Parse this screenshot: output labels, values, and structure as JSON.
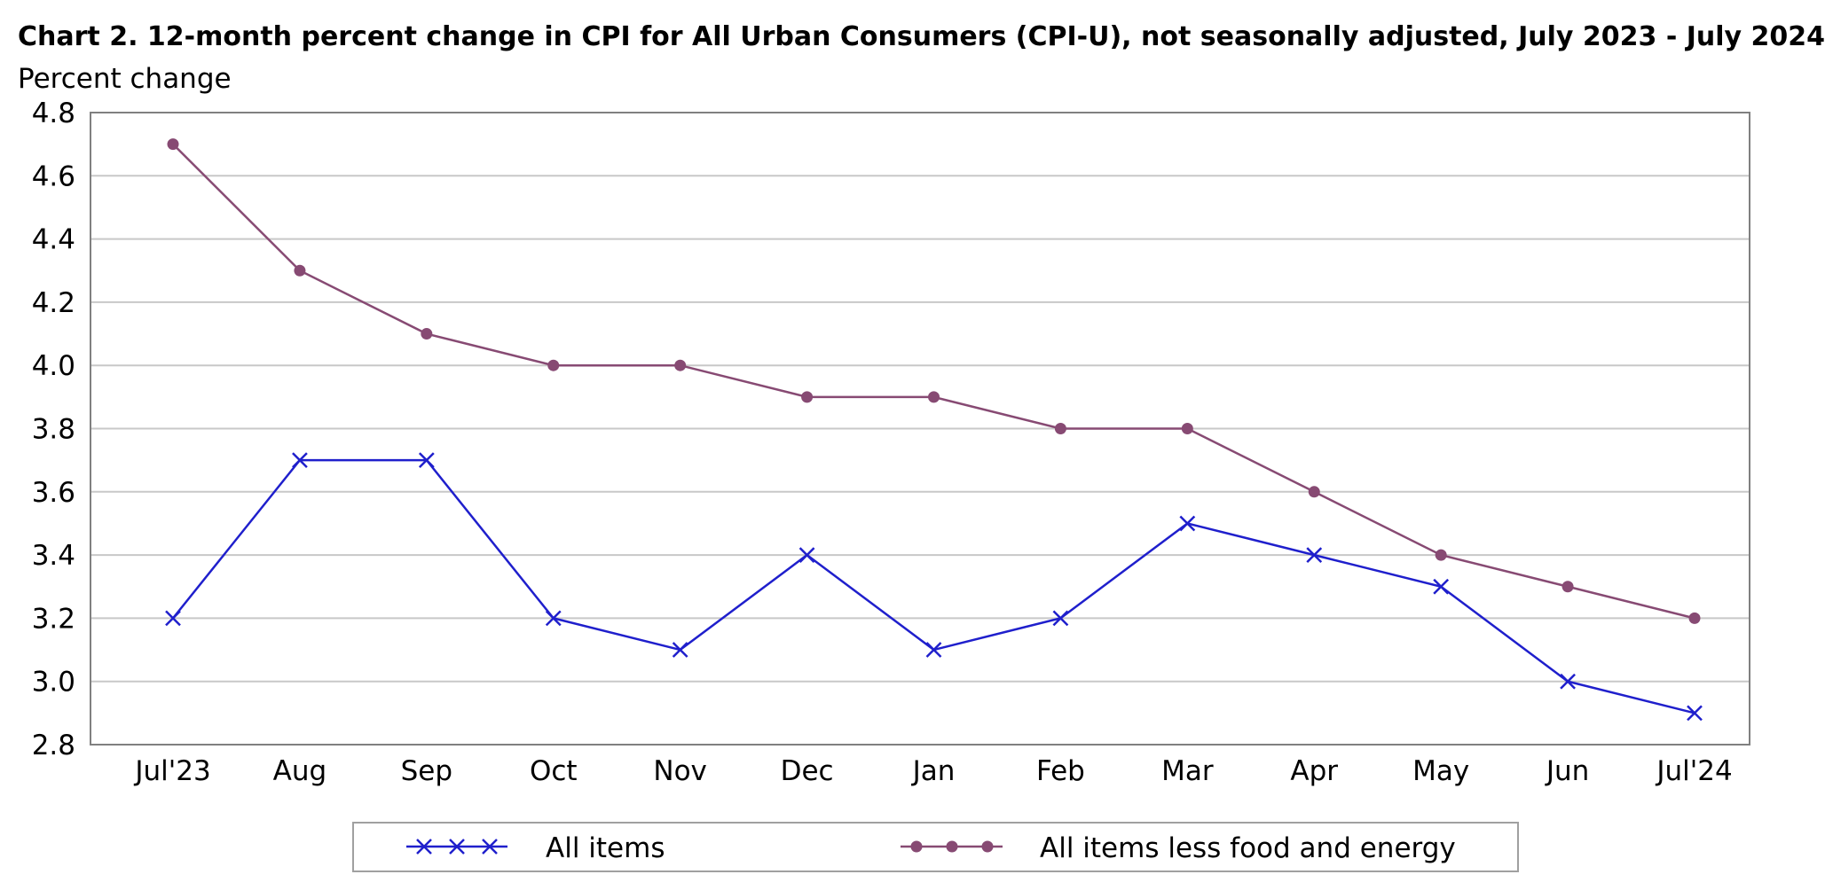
{
  "chart_data": {
    "type": "line",
    "title": "Chart 2. 12-month percent change in CPI for All Urban Consumers (CPI-U), not seasonally adjusted, July 2023 - July 2024",
    "ylabel": "Percent change",
    "xlabel": "",
    "categories": [
      "Jul'23",
      "Aug",
      "Sep",
      "Oct",
      "Nov",
      "Dec",
      "Jan",
      "Feb",
      "Mar",
      "Apr",
      "May",
      "Jun",
      "Jul'24"
    ],
    "ylim": [
      2.8,
      4.8
    ],
    "yticks": [
      "2.8",
      "3.0",
      "3.2",
      "3.4",
      "3.6",
      "3.8",
      "4.0",
      "4.2",
      "4.4",
      "4.6",
      "4.8"
    ],
    "grid": "horizontal",
    "legend_position": "bottom",
    "series": [
      {
        "name": "All items",
        "color": "#1f1fcc",
        "marker": "x",
        "values": [
          3.2,
          3.7,
          3.7,
          3.2,
          3.1,
          3.4,
          3.1,
          3.2,
          3.5,
          3.4,
          3.3,
          3.0,
          2.9
        ]
      },
      {
        "name": "All items less food and energy",
        "color": "#874a73",
        "marker": "circle",
        "values": [
          4.7,
          4.3,
          4.1,
          4.0,
          4.0,
          3.9,
          3.9,
          3.8,
          3.8,
          3.6,
          3.4,
          3.3,
          3.2
        ]
      }
    ]
  }
}
